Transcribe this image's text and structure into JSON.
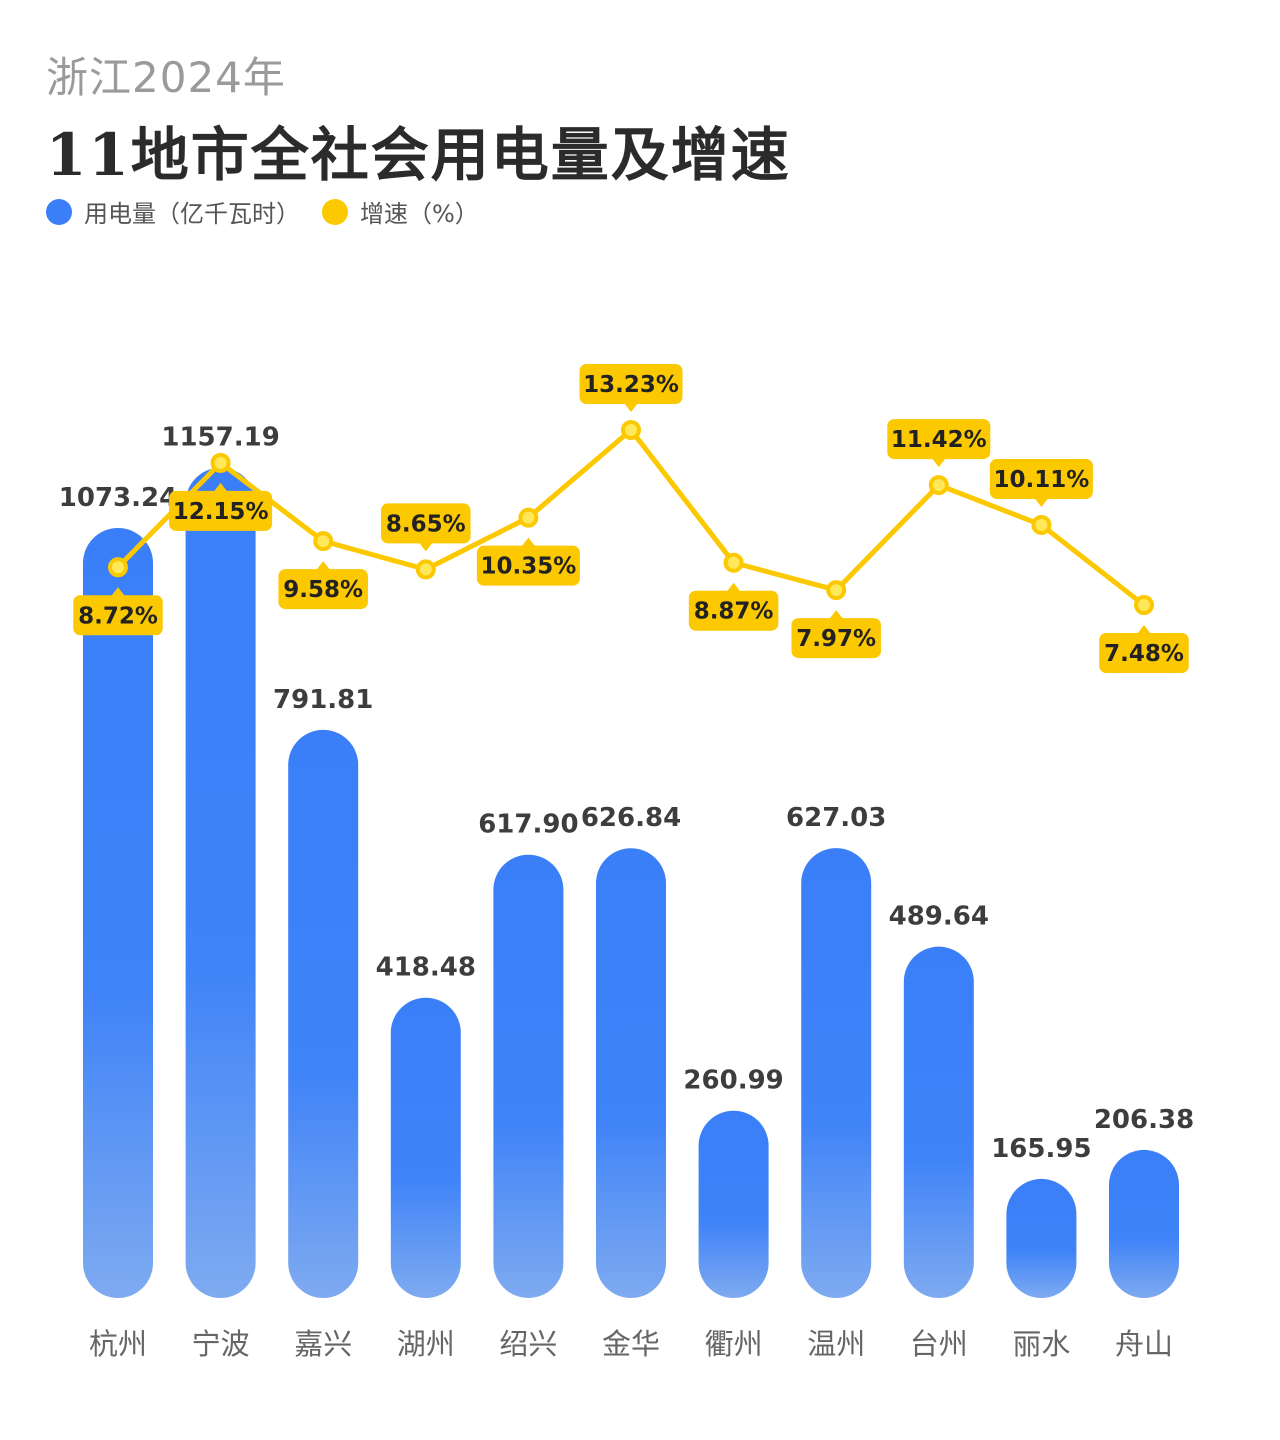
{
  "header": {
    "subtitle": "浙江2024年",
    "title": "11地市全社会用电量及增速"
  },
  "legend": {
    "usage_label": "用电量（亿千瓦时）",
    "growth_label": "增速（%）"
  },
  "colors": {
    "bar_top": "#3a7ff8",
    "bar_bottom": "#7eaaf0",
    "line": "#fcc800",
    "label_bg": "#fcc800",
    "title": "#2b2b2b",
    "subtitle": "#9a9a9a"
  },
  "chart_data": {
    "type": "bar",
    "categories": [
      "杭州",
      "宁波",
      "嘉兴",
      "湖州",
      "绍兴",
      "金华",
      "衢州",
      "温州",
      "台州",
      "丽水",
      "舟山"
    ],
    "series": [
      {
        "name": "用电量（亿千瓦时）",
        "type": "bar",
        "values": [
          1073.24,
          1157.19,
          791.81,
          418.48,
          617.9,
          626.84,
          260.99,
          627.03,
          489.64,
          165.95,
          206.38
        ],
        "labels": [
          "1073.24",
          "1157.19",
          "791.81",
          "418.48",
          "617.90",
          "626.84",
          "260.99",
          "627.03",
          "489.64",
          "165.95",
          "206.38"
        ]
      },
      {
        "name": "增速（%）",
        "type": "line",
        "values": [
          8.72,
          12.15,
          9.58,
          8.65,
          10.35,
          13.23,
          8.87,
          7.97,
          11.42,
          10.11,
          7.48
        ],
        "labels": [
          "8.72%",
          "12.15%",
          "9.58%",
          "8.65%",
          "10.35%",
          "13.23%",
          "8.87%",
          "7.97%",
          "11.42%",
          "10.11%",
          "7.48%"
        ],
        "label_positions": [
          "below",
          "below",
          "below",
          "above",
          "below",
          "above",
          "below",
          "below",
          "above",
          "above",
          "below"
        ]
      }
    ]
  }
}
